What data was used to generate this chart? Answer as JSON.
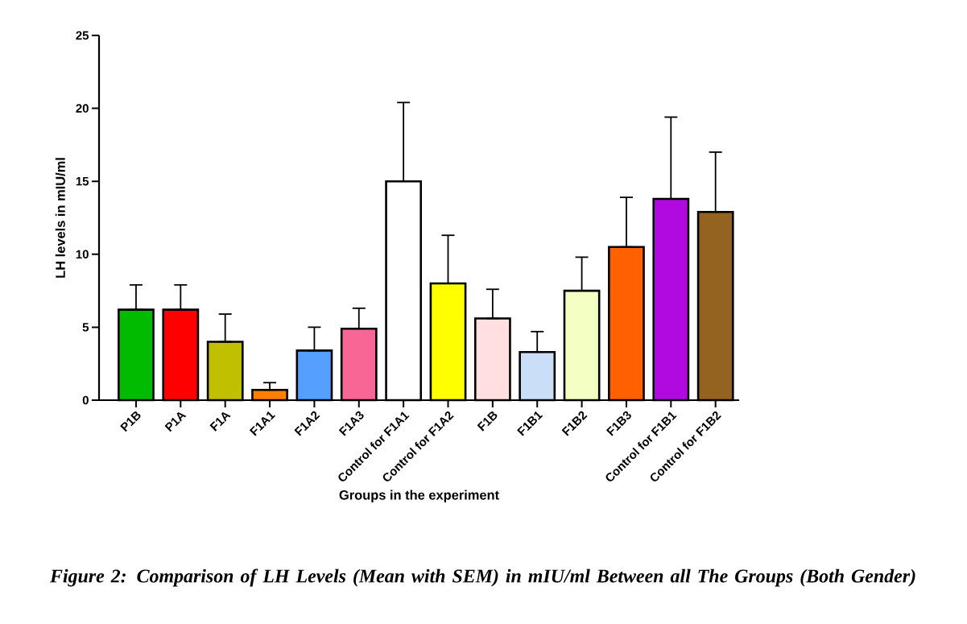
{
  "chart_data": {
    "type": "bar",
    "xlabel": "Groups in the experiment",
    "ylabel": "LH levels in mIU/ml",
    "categories": [
      "P1B",
      "P1A",
      "F1A",
      "F1A1",
      "F1A2",
      "F1A3",
      "Control for F1A1",
      "Control for F1A2",
      "F1B",
      "F1B1",
      "F1B2",
      "F1B3",
      "Control for F1B1",
      "Control for F1B2"
    ],
    "values": [
      6.2,
      6.2,
      4.0,
      0.7,
      3.4,
      4.9,
      15.0,
      8.0,
      5.6,
      3.3,
      7.5,
      10.5,
      13.8,
      12.9
    ],
    "errors": [
      [
        6.2,
        7.9
      ],
      [
        6.2,
        7.9
      ],
      [
        4.0,
        5.9
      ],
      [
        0.7,
        1.2
      ],
      [
        3.4,
        5.0
      ],
      [
        4.9,
        6.3
      ],
      [
        15.0,
        20.4
      ],
      [
        8.0,
        11.3
      ],
      [
        5.6,
        7.6
      ],
      [
        3.3,
        4.7
      ],
      [
        7.5,
        9.8
      ],
      [
        10.5,
        13.9
      ],
      [
        13.8,
        19.4
      ],
      [
        12.9,
        17.0
      ]
    ],
    "colors": [
      "#00bb00",
      "#ff0000",
      "#c0c000",
      "#ff8000",
      "#55a0ff",
      "#f76695",
      "#ffffff",
      "#ffff00",
      "#ffdfe0",
      "#cadff7",
      "#f4ffc4",
      "#ff6000",
      "#b00ae0",
      "#956320"
    ],
    "ylim": [
      0,
      25
    ],
    "yticks": [
      0,
      5,
      10,
      15,
      20,
      25
    ],
    "annotations": [
      "Figure 2: Comparison of LH Levels (Mean with SEM) in mIU/ml Between all The Groups (Both Gender)"
    ]
  }
}
